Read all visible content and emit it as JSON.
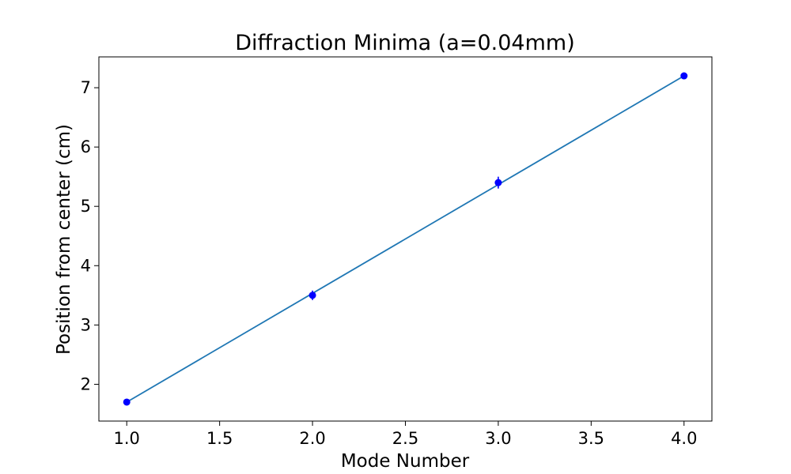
{
  "chart_data": {
    "type": "scatter",
    "title": "Diffraction Minima (a=0.04mm)",
    "xlabel": "Mode Number",
    "ylabel": "Position from center (cm)",
    "xlim": [
      0.85,
      4.15
    ],
    "ylim": [
      1.38,
      7.52
    ],
    "x_ticks": [
      1.0,
      1.5,
      2.0,
      2.5,
      3.0,
      3.5,
      4.0
    ],
    "x_tick_labels": [
      "1.0",
      "1.5",
      "2.0",
      "2.5",
      "3.0",
      "3.5",
      "4.0"
    ],
    "y_ticks": [
      2,
      3,
      4,
      5,
      6,
      7
    ],
    "y_tick_labels": [
      "2",
      "3",
      "4",
      "5",
      "6",
      "7"
    ],
    "grid": false,
    "series": [
      {
        "type": "errorbar",
        "x": [
          1,
          2,
          3,
          4
        ],
        "y": [
          1.7,
          3.5,
          5.4,
          7.2
        ],
        "yerr": [
          0.02,
          0.08,
          0.1,
          0.02
        ],
        "color": "#0000ff"
      },
      {
        "type": "line",
        "x": [
          1,
          4
        ],
        "y": [
          1.7,
          7.2
        ],
        "color": "#1f77b4"
      }
    ]
  }
}
